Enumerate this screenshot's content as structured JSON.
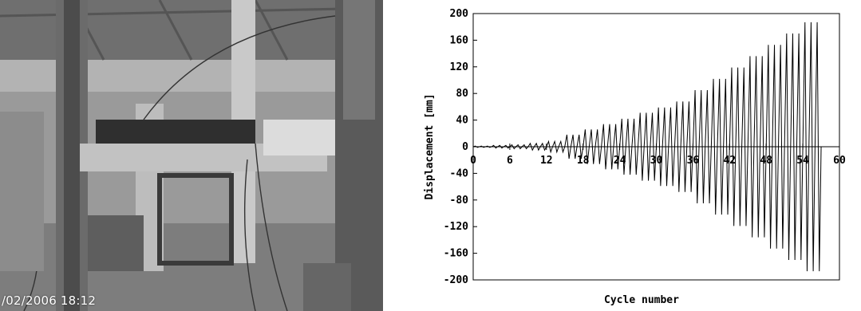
{
  "photo": {
    "timestamp": "/02/2006 18:12"
  },
  "chart_data": {
    "type": "line",
    "title": "",
    "xlabel": "Cycle number",
    "ylabel": "Displacement [mm]",
    "xlim": [
      0,
      60
    ],
    "ylim": [
      -200,
      200
    ],
    "xticks": [
      0,
      6,
      12,
      18,
      24,
      30,
      36,
      42,
      48,
      54,
      60
    ],
    "yticks": [
      200,
      160,
      120,
      80,
      40,
      0,
      -40,
      -80,
      -120,
      -160,
      -200
    ],
    "grid": false,
    "series": [
      {
        "name": "",
        "color": "#000000",
        "cycle_amplitudes": [
          {
            "from_cycle": 0,
            "to_cycle": 3,
            "amplitude_mm": 1
          },
          {
            "from_cycle": 3,
            "to_cycle": 6,
            "amplitude_mm": 2
          },
          {
            "from_cycle": 6,
            "to_cycle": 9,
            "amplitude_mm": 3
          },
          {
            "from_cycle": 9,
            "to_cycle": 12,
            "amplitude_mm": 5
          },
          {
            "from_cycle": 12,
            "to_cycle": 15,
            "amplitude_mm": 8
          },
          {
            "from_cycle": 15,
            "to_cycle": 18,
            "amplitude_mm": 18
          },
          {
            "from_cycle": 18,
            "to_cycle": 21,
            "amplitude_mm": 26
          },
          {
            "from_cycle": 21,
            "to_cycle": 24,
            "amplitude_mm": 34
          },
          {
            "from_cycle": 24,
            "to_cycle": 27,
            "amplitude_mm": 42
          },
          {
            "from_cycle": 27,
            "to_cycle": 30,
            "amplitude_mm": 51
          },
          {
            "from_cycle": 30,
            "to_cycle": 33,
            "amplitude_mm": 59
          },
          {
            "from_cycle": 33,
            "to_cycle": 36,
            "amplitude_mm": 68
          },
          {
            "from_cycle": 36,
            "to_cycle": 39,
            "amplitude_mm": 85
          },
          {
            "from_cycle": 39,
            "to_cycle": 42,
            "amplitude_mm": 102
          },
          {
            "from_cycle": 42,
            "to_cycle": 45,
            "amplitude_mm": 119
          },
          {
            "from_cycle": 45,
            "to_cycle": 48,
            "amplitude_mm": 136
          },
          {
            "from_cycle": 48,
            "to_cycle": 51,
            "amplitude_mm": 153
          },
          {
            "from_cycle": 51,
            "to_cycle": 54,
            "amplitude_mm": 170
          },
          {
            "from_cycle": 54,
            "to_cycle": 57,
            "amplitude_mm": 187
          }
        ]
      }
    ]
  }
}
